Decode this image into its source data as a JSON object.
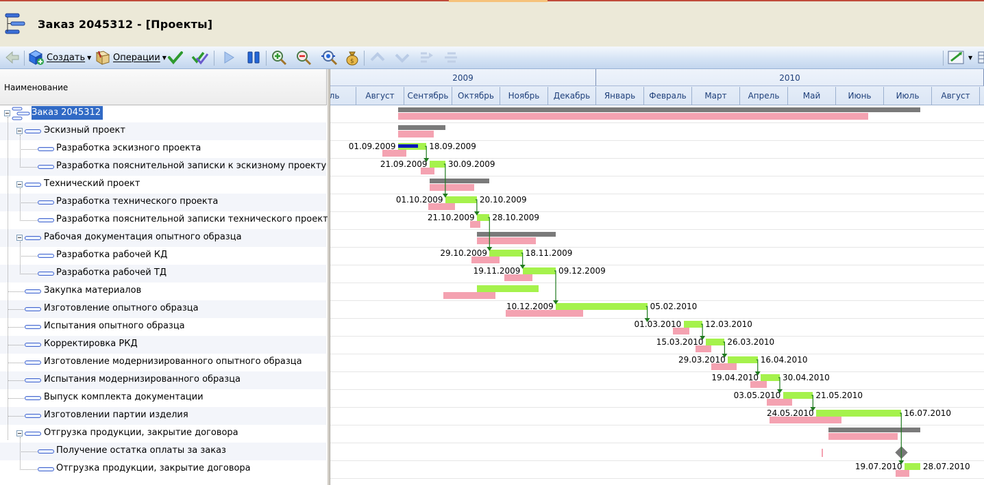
{
  "window": {
    "title": "Заказ 2045312 - [Проекты]"
  },
  "toolbar": {
    "create_label": "Создать",
    "operations_label": "Операции",
    "icons": [
      "back-icon",
      "create-cube-icon",
      "operations-icon",
      "check-icon",
      "double-check-icon",
      "play-icon",
      "pause-icon",
      "zoom-in-icon",
      "zoom-out-icon",
      "zoom-fit-icon",
      "money-bag-icon",
      "arrow-up-icon",
      "arrow-down-icon",
      "indent-icon",
      "outdent-icon",
      "settings-icon",
      "columns-icon"
    ]
  },
  "grid": {
    "column_header": "Наименование",
    "rows": [
      {
        "name": "Заказ 2045312",
        "level": 0
      },
      {
        "name": "Эскизный проект",
        "level": 1
      },
      {
        "name": "Разработка эскизного проекта",
        "level": 2
      },
      {
        "name": "Разработка пояснительной записки к эскизному проекту",
        "level": 2
      },
      {
        "name": "Технический проект",
        "level": 1
      },
      {
        "name": "Разработка технического проекта",
        "level": 2
      },
      {
        "name": "Разработка пояснительной записки технического проекта",
        "level": 2
      },
      {
        "name": "Рабочая документация опытного образца",
        "level": 1
      },
      {
        "name": "Разработка рабочей КД",
        "level": 2
      },
      {
        "name": "Разработка рабочей ТД",
        "level": 2
      },
      {
        "name": "Закупка материалов",
        "level": 1
      },
      {
        "name": "Изготовление опытного образца",
        "level": 1
      },
      {
        "name": "Испытания опытного образца",
        "level": 1
      },
      {
        "name": "Корректировка РКД",
        "level": 1
      },
      {
        "name": "Изготовление модернизированного опытного образца",
        "level": 1
      },
      {
        "name": "Испытания модернизированного образца",
        "level": 1
      },
      {
        "name": "Выпуск комплекта документации",
        "level": 1
      },
      {
        "name": "Изготовлении партии изделия",
        "level": 1
      },
      {
        "name": "Отгрузка продукции, закрытие договора",
        "level": 1
      },
      {
        "name": "Получение остатка оплаты за заказ",
        "level": 2
      },
      {
        "name": "Отгрузка продукции, закрытие договора",
        "level": 2
      }
    ]
  },
  "timeline": {
    "years": [
      "2009",
      "2010"
    ],
    "months": [
      "Июль",
      "Август",
      "Сентябрь",
      "Октябрь",
      "Ноябрь",
      "Декабрь",
      "Январь",
      "Февраль",
      "Март",
      "Апрель",
      "Май",
      "Июнь",
      "Июль",
      "Август"
    ],
    "colors": {
      "summary": "#7a7a7a",
      "planned": "#f4a2b1",
      "actual": "#a5f24c",
      "progress": "#0a18b8",
      "link": "#1f7a1f",
      "milestone": "#777777"
    }
  },
  "tasks": [
    {
      "row": 0,
      "type": "summary",
      "start": "2009-09-01",
      "end": "2010-07-28"
    },
    {
      "row": 1,
      "type": "summary",
      "start": "2009-09-01",
      "end": "2009-09-30"
    },
    {
      "row": 2,
      "type": "task",
      "start": "2009-09-01",
      "end": "2009-09-18",
      "start_label": "01.09.2009",
      "end_label": "18.09.2009",
      "progress": 0.7
    },
    {
      "row": 3,
      "type": "task",
      "start": "2009-09-21",
      "end": "2009-09-30",
      "start_label": "21.09.2009",
      "end_label": "30.09.2009"
    },
    {
      "row": 4,
      "type": "summary",
      "start": "2009-09-21",
      "end": "2009-10-28"
    },
    {
      "row": 5,
      "type": "task",
      "start": "2009-10-01",
      "end": "2009-10-20",
      "start_label": "01.10.2009",
      "end_label": "20.10.2009"
    },
    {
      "row": 6,
      "type": "task",
      "start": "2009-10-21",
      "end": "2009-10-28",
      "start_label": "21.10.2009",
      "end_label": "28.10.2009"
    },
    {
      "row": 7,
      "type": "summary",
      "start": "2009-10-21",
      "end": "2009-12-09"
    },
    {
      "row": 8,
      "type": "task",
      "start": "2009-10-29",
      "end": "2009-11-18",
      "start_label": "29.10.2009",
      "end_label": "18.11.2009"
    },
    {
      "row": 9,
      "type": "task",
      "start": "2009-11-19",
      "end": "2009-12-09",
      "start_label": "19.11.2009",
      "end_label": "09.12.2009"
    },
    {
      "row": 10,
      "type": "task",
      "start": "2009-10-21",
      "end": "2009-11-28"
    },
    {
      "row": 11,
      "type": "task",
      "start": "2009-12-10",
      "end": "2010-02-05",
      "start_label": "10.12.2009",
      "end_label": "05.02.2010"
    },
    {
      "row": 12,
      "type": "task",
      "start": "2010-03-01",
      "end": "2010-03-12",
      "start_label": "01.03.2010",
      "end_label": "12.03.2010"
    },
    {
      "row": 13,
      "type": "task",
      "start": "2010-03-15",
      "end": "2010-03-26",
      "start_label": "15.03.2010",
      "end_label": "26.03.2010"
    },
    {
      "row": 14,
      "type": "task",
      "start": "2010-03-29",
      "end": "2010-04-16",
      "start_label": "29.03.2010",
      "end_label": "16.04.2010"
    },
    {
      "row": 15,
      "type": "task",
      "start": "2010-04-19",
      "end": "2010-04-30",
      "start_label": "19.04.2010",
      "end_label": "30.04.2010"
    },
    {
      "row": 16,
      "type": "task",
      "start": "2010-05-03",
      "end": "2010-05-21",
      "start_label": "03.05.2010",
      "end_label": "21.05.2010"
    },
    {
      "row": 17,
      "type": "task",
      "start": "2010-05-24",
      "end": "2010-07-16",
      "start_label": "24.05.2010",
      "end_label": "16.07.2010"
    },
    {
      "row": 18,
      "type": "summary",
      "start": "2010-06-01",
      "end": "2010-07-28"
    },
    {
      "row": 19,
      "type": "milestone",
      "start": "2010-07-17",
      "end": "2010-07-17"
    },
    {
      "row": 20,
      "type": "task",
      "start": "2010-07-19",
      "end": "2010-07-28",
      "start_label": "19.07.2010",
      "end_label": "28.07.2010"
    }
  ]
}
